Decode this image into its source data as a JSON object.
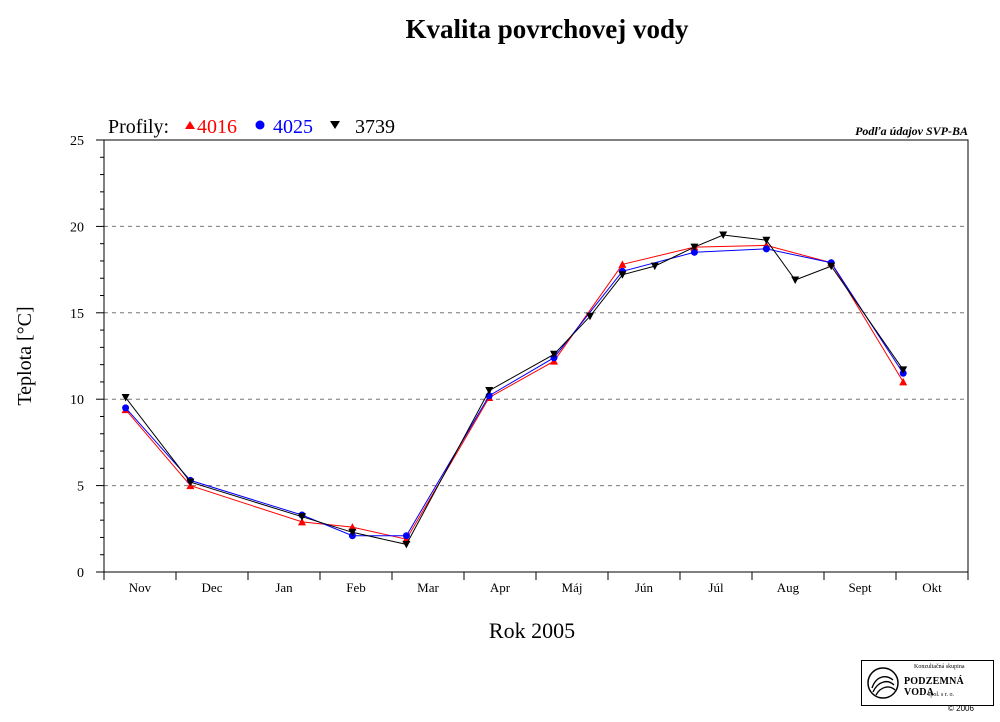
{
  "title": "Kvalita povrchovej vody",
  "source_note": "Podľa údajov SVP-BA",
  "legend_prefix": "Profily:",
  "logo": {
    "line1": "Konzultačná skupina",
    "line2": "PODZEMNÁ VODA",
    "line3": "spol. s r. o.",
    "copyright": "© 2006"
  },
  "colors": {
    "s4016": "#ff0000",
    "s4025": "#0000ff",
    "s3739": "#000000",
    "grid": "#777777"
  },
  "chart_data": {
    "type": "line",
    "title": "Kvalita povrchovej vody",
    "xlabel": "Rok 2005",
    "ylabel": "Teplota [°C]",
    "ylim": [
      0,
      25
    ],
    "yticks": [
      0,
      5,
      10,
      15,
      20,
      25
    ],
    "grid": "horizontal dashed at 5, 10, 15, 20",
    "legend": "top-left",
    "x_unit": "month index (0 = Nov 2004 ... 11 = Okt 2005)",
    "categories": [
      "Nov",
      "Dec",
      "Jan",
      "Feb",
      "Mar",
      "Apr",
      "Máj",
      "Jún",
      "Júl",
      "Aug",
      "Sept",
      "Okt"
    ],
    "series": [
      {
        "name": "4016",
        "marker": "triangle-up",
        "color": "#ff0000",
        "x": [
          0.3,
          1.2,
          2.75,
          3.45,
          4.2,
          5.35,
          6.25,
          7.2,
          8.2,
          9.2,
          10.1,
          11.1
        ],
        "y": [
          9.4,
          5.0,
          2.9,
          2.6,
          1.9,
          10.1,
          12.2,
          17.8,
          18.8,
          18.9,
          17.9,
          11.0
        ]
      },
      {
        "name": "4025",
        "marker": "circle",
        "color": "#0000ff",
        "x": [
          0.3,
          1.2,
          2.75,
          3.45,
          4.2,
          5.35,
          6.25,
          7.2,
          8.2,
          9.2,
          10.1,
          11.1
        ],
        "y": [
          9.5,
          5.3,
          3.3,
          2.1,
          2.1,
          10.2,
          12.4,
          17.4,
          18.5,
          18.7,
          17.9,
          11.5
        ]
      },
      {
        "name": "3739",
        "marker": "triangle-down",
        "color": "#000000",
        "x": [
          0.3,
          1.2,
          2.75,
          3.45,
          4.2,
          5.35,
          6.25,
          6.75,
          7.2,
          7.65,
          8.2,
          8.6,
          9.2,
          9.6,
          10.1,
          11.1
        ],
        "y": [
          10.1,
          5.2,
          3.2,
          2.3,
          1.6,
          10.5,
          12.6,
          14.8,
          17.2,
          17.7,
          18.8,
          19.5,
          19.2,
          16.9,
          17.7,
          11.7
        ]
      }
    ]
  }
}
